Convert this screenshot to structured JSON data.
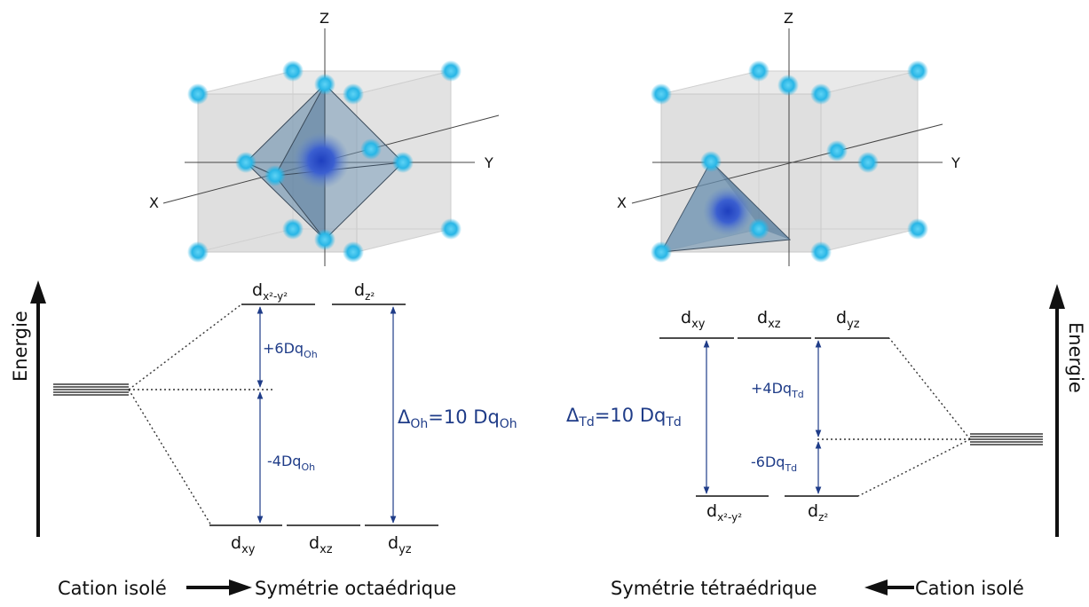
{
  "axes": {
    "x": "X",
    "y": "Y",
    "z": "Z"
  },
  "octahedral": {
    "upper_levels": [
      {
        "main": "d",
        "sub": "x²-y²"
      },
      {
        "main": "d",
        "sub": "z²"
      }
    ],
    "lower_levels": [
      {
        "main": "d",
        "sub": "xy"
      },
      {
        "main": "d",
        "sub": "xz"
      },
      {
        "main": "d",
        "sub": "yz"
      }
    ],
    "gap_up": {
      "main": "+6Dq",
      "sub": "Oh"
    },
    "gap_down": {
      "main": "-4Dq",
      "sub": "Oh"
    },
    "delta": {
      "sym": "Δ",
      "sub1": "Oh",
      "mid": "=10 Dq",
      "sub2": "Oh"
    },
    "caption": {
      "left": "Cation isolé",
      "right": "Symétrie octaédrique"
    }
  },
  "tetrahedral": {
    "upper_levels": [
      {
        "main": "d",
        "sub": "xy"
      },
      {
        "main": "d",
        "sub": "xz"
      },
      {
        "main": "d",
        "sub": "yz"
      }
    ],
    "lower_levels": [
      {
        "main": "d",
        "sub": "x²-y²"
      },
      {
        "main": "d",
        "sub": "z²"
      }
    ],
    "gap_up": {
      "main": "+4Dq",
      "sub": "Td"
    },
    "gap_down": {
      "main": "-6Dq",
      "sub": "Td"
    },
    "delta": {
      "sym": "Δ",
      "sub1": "Td",
      "mid": "=10 Dq",
      "sub2": "Td"
    },
    "caption": {
      "left": "Symétrie tétraédrique",
      "right": "Cation isolé"
    }
  },
  "energy_label": "Energie",
  "colors": {
    "atom": "#29b6e6",
    "cation": "#2a4fc4",
    "polyhedron": "#5f86a8",
    "annotation": "#1f3c88"
  }
}
